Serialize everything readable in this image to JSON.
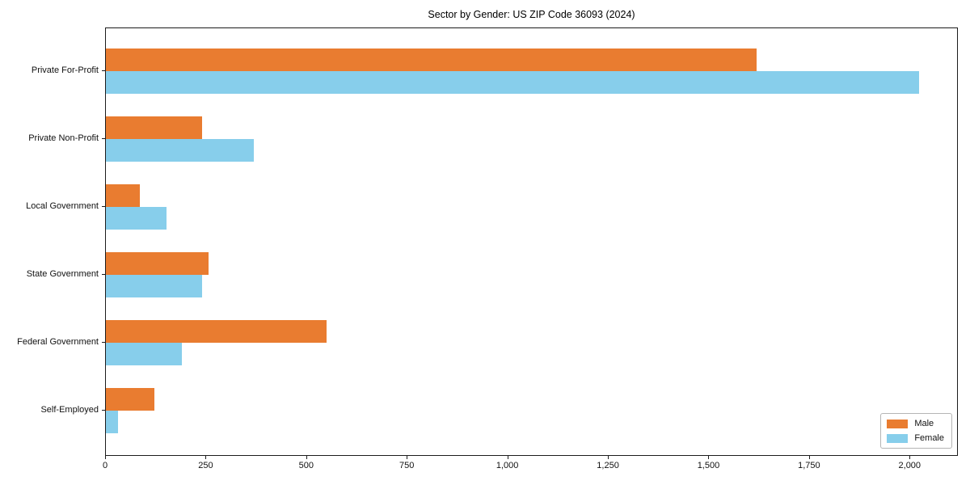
{
  "page": {
    "background": "#ffffff"
  },
  "chart_data": {
    "type": "bar",
    "orientation": "horizontal",
    "title": "Sector by Gender: US ZIP Code 36093 (2024)",
    "categories": [
      "Private For-Profit",
      "Private Non-Profit",
      "Local Government",
      "State Government",
      "Federal Government",
      "Self-Employed"
    ],
    "series": [
      {
        "name": "Male",
        "color": "#E97C30",
        "values": [
          1620,
          240,
          85,
          255,
          550,
          120
        ]
      },
      {
        "name": "Female",
        "color": "#87CEEB",
        "values": [
          2025,
          368,
          150,
          240,
          190,
          30
        ]
      }
    ],
    "xlabel": "",
    "ylabel": "",
    "xlim": [
      0,
      2120
    ],
    "x_ticks": [
      0,
      250,
      500,
      750,
      1000,
      1250,
      1500,
      1750,
      2000
    ],
    "x_tick_labels": [
      "0",
      "250",
      "500",
      "750",
      "1,000",
      "1,250",
      "1,500",
      "1,750",
      "2,000"
    ],
    "grid": false,
    "legend": {
      "position": "lower right",
      "entries": [
        "Male",
        "Female"
      ]
    },
    "axis_color": "#1c1c1c"
  }
}
